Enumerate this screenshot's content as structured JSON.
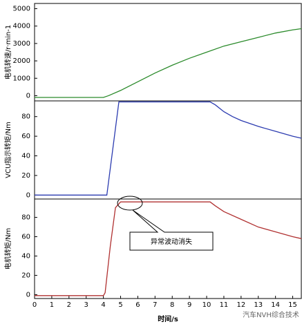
{
  "chart_data": [
    {
      "type": "line",
      "ylabel": "电机转速/r·min-1",
      "x": [
        0,
        1,
        2,
        3,
        4,
        4.3,
        5,
        6,
        7,
        8,
        9,
        10,
        11,
        12,
        13,
        14,
        15,
        15.5
      ],
      "series": [
        {
          "name": "电机转速",
          "color": "#2a8a2a",
          "values": [
            -100,
            -100,
            -100,
            -100,
            -100,
            0,
            300,
            800,
            1300,
            1750,
            2150,
            2500,
            2850,
            3100,
            3350,
            3600,
            3780,
            3850
          ]
        }
      ],
      "xlim": [
        0,
        15.5
      ],
      "ylim": [
        -300,
        5300
      ],
      "yticks": [
        0,
        1000,
        2000,
        3000,
        4000,
        5000
      ]
    },
    {
      "type": "line",
      "ylabel": "VCU指示转矩/Nm",
      "x": [
        0,
        1,
        2,
        3,
        4,
        4.2,
        4.9,
        6,
        8,
        10.2,
        10.5,
        11,
        11.5,
        12,
        13,
        14,
        15,
        15.5
      ],
      "series": [
        {
          "name": "VCU指示转矩",
          "color": "#2b3bb0",
          "values": [
            0,
            0,
            0,
            0,
            0,
            0,
            95,
            95,
            95,
            95,
            92,
            85,
            80,
            76,
            70,
            65,
            60,
            58
          ]
        }
      ],
      "xlim": [
        0,
        15.5
      ],
      "ylim": [
        -4,
        96
      ],
      "yticks": [
        0,
        20,
        40,
        60,
        80
      ]
    },
    {
      "type": "line",
      "ylabel": "电机转矩/Nm",
      "xlabel": "时间/s",
      "annotation": "异常波动消失",
      "x": [
        0,
        1,
        2,
        3,
        4,
        4.1,
        4.4,
        4.7,
        5,
        6,
        8,
        10.2,
        10.5,
        11,
        12,
        13,
        14,
        15,
        15.5
      ],
      "series": [
        {
          "name": "电机转矩",
          "color": "#b03030",
          "values": [
            -1,
            -1,
            -1,
            -1,
            -1,
            2,
            50,
            90,
            96,
            96,
            96,
            96,
            92,
            86,
            78,
            70,
            65,
            60,
            58
          ]
        }
      ],
      "xlim": [
        0,
        15.5
      ],
      "ylim": [
        -4,
        99
      ],
      "yticks": [
        0,
        20,
        40,
        60,
        80
      ],
      "xticks": [
        0,
        1,
        2,
        3,
        4,
        5,
        6,
        7,
        8,
        9,
        10,
        11,
        12,
        13,
        14,
        15
      ]
    }
  ],
  "watermark": "汽车NVH综合技术"
}
